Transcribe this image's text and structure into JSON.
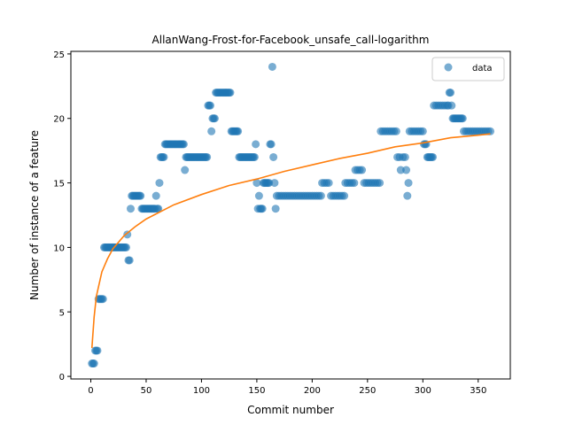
{
  "chart_data": {
    "type": "scatter",
    "title": "AllanWang-Frost-for-Facebook_unsafe_call-logarithm",
    "xlabel": "Commit number",
    "ylabel": "Number of instance of a feature",
    "xlim": [
      -18,
      379
    ],
    "ylim": [
      -0.2,
      25.2
    ],
    "xticks": [
      0,
      50,
      100,
      150,
      200,
      250,
      300,
      350
    ],
    "yticks": [
      0,
      5,
      10,
      15,
      20,
      25
    ],
    "grid": false,
    "legend": {
      "placement": "top-right",
      "entries": [
        "data"
      ]
    },
    "colors": {
      "data": "#1f77b4",
      "fit": "#ff7f0e"
    },
    "series": [
      {
        "name": "data",
        "kind": "scatter",
        "points": [
          [
            1,
            1
          ],
          [
            2,
            1
          ],
          [
            3,
            1
          ],
          [
            4,
            2
          ],
          [
            5,
            2
          ],
          [
            6,
            2
          ],
          [
            7,
            6
          ],
          [
            8,
            6
          ],
          [
            9,
            6
          ],
          [
            10,
            6
          ],
          [
            11,
            6
          ],
          [
            12,
            10
          ],
          [
            13,
            10
          ],
          [
            14,
            10
          ],
          [
            15,
            10
          ],
          [
            16,
            10
          ],
          [
            17,
            10
          ],
          [
            18,
            10
          ],
          [
            19,
            10
          ],
          [
            20,
            10
          ],
          [
            21,
            10
          ],
          [
            22,
            10
          ],
          [
            23,
            10
          ],
          [
            24,
            10
          ],
          [
            25,
            10
          ],
          [
            26,
            10
          ],
          [
            27,
            10
          ],
          [
            28,
            10
          ],
          [
            29,
            10
          ],
          [
            30,
            10
          ],
          [
            31,
            10
          ],
          [
            32,
            10
          ],
          [
            33,
            11
          ],
          [
            34,
            9
          ],
          [
            35,
            9
          ],
          [
            36,
            13
          ],
          [
            37,
            14
          ],
          [
            38,
            14
          ],
          [
            39,
            14
          ],
          [
            40,
            14
          ],
          [
            41,
            14
          ],
          [
            42,
            14
          ],
          [
            43,
            14
          ],
          [
            44,
            14
          ],
          [
            45,
            14
          ],
          [
            46,
            13
          ],
          [
            47,
            13
          ],
          [
            48,
            13
          ],
          [
            49,
            13
          ],
          [
            50,
            13
          ],
          [
            51,
            13
          ],
          [
            52,
            13
          ],
          [
            53,
            13
          ],
          [
            54,
            13
          ],
          [
            55,
            13
          ],
          [
            56,
            13
          ],
          [
            57,
            13
          ],
          [
            58,
            13
          ],
          [
            59,
            14
          ],
          [
            60,
            13
          ],
          [
            61,
            13
          ],
          [
            62,
            15
          ],
          [
            63,
            17
          ],
          [
            64,
            17
          ],
          [
            65,
            17
          ],
          [
            66,
            17
          ],
          [
            67,
            18
          ],
          [
            68,
            18
          ],
          [
            69,
            18
          ],
          [
            70,
            18
          ],
          [
            71,
            18
          ],
          [
            72,
            18
          ],
          [
            73,
            18
          ],
          [
            74,
            18
          ],
          [
            75,
            18
          ],
          [
            76,
            18
          ],
          [
            77,
            18
          ],
          [
            78,
            18
          ],
          [
            79,
            18
          ],
          [
            80,
            18
          ],
          [
            81,
            18
          ],
          [
            82,
            18
          ],
          [
            83,
            18
          ],
          [
            84,
            18
          ],
          [
            85,
            16
          ],
          [
            86,
            17
          ],
          [
            87,
            17
          ],
          [
            88,
            17
          ],
          [
            89,
            17
          ],
          [
            90,
            17
          ],
          [
            91,
            17
          ],
          [
            92,
            17
          ],
          [
            93,
            17
          ],
          [
            94,
            17
          ],
          [
            95,
            17
          ],
          [
            96,
            17
          ],
          [
            97,
            17
          ],
          [
            98,
            17
          ],
          [
            99,
            17
          ],
          [
            100,
            17
          ],
          [
            101,
            17
          ],
          [
            102,
            17
          ],
          [
            103,
            17
          ],
          [
            104,
            17
          ],
          [
            105,
            17
          ],
          [
            106,
            21
          ],
          [
            107,
            21
          ],
          [
            108,
            21
          ],
          [
            109,
            19
          ],
          [
            110,
            20
          ],
          [
            111,
            20
          ],
          [
            112,
            20
          ],
          [
            113,
            22
          ],
          [
            114,
            22
          ],
          [
            115,
            22
          ],
          [
            116,
            22
          ],
          [
            117,
            22
          ],
          [
            118,
            22
          ],
          [
            119,
            22
          ],
          [
            120,
            22
          ],
          [
            121,
            22
          ],
          [
            122,
            22
          ],
          [
            123,
            22
          ],
          [
            124,
            22
          ],
          [
            125,
            22
          ],
          [
            126,
            22
          ],
          [
            127,
            19
          ],
          [
            128,
            19
          ],
          [
            129,
            19
          ],
          [
            130,
            19
          ],
          [
            131,
            19
          ],
          [
            132,
            19
          ],
          [
            133,
            19
          ],
          [
            134,
            17
          ],
          [
            135,
            17
          ],
          [
            136,
            17
          ],
          [
            137,
            17
          ],
          [
            138,
            17
          ],
          [
            139,
            17
          ],
          [
            140,
            17
          ],
          [
            141,
            17
          ],
          [
            142,
            17
          ],
          [
            143,
            17
          ],
          [
            144,
            17
          ],
          [
            145,
            17
          ],
          [
            146,
            17
          ],
          [
            147,
            17
          ],
          [
            148,
            17
          ],
          [
            149,
            18
          ],
          [
            150,
            15
          ],
          [
            151,
            13
          ],
          [
            152,
            14
          ],
          [
            153,
            13
          ],
          [
            154,
            13
          ],
          [
            155,
            13
          ],
          [
            156,
            15
          ],
          [
            157,
            15
          ],
          [
            158,
            15
          ],
          [
            159,
            15
          ],
          [
            160,
            15
          ],
          [
            161,
            15
          ],
          [
            162,
            18
          ],
          [
            163,
            18
          ],
          [
            164,
            24
          ],
          [
            165,
            17
          ],
          [
            166,
            15
          ],
          [
            167,
            13
          ],
          [
            168,
            14
          ],
          [
            170,
            14
          ],
          [
            172,
            14
          ],
          [
            174,
            14
          ],
          [
            176,
            14
          ],
          [
            178,
            14
          ],
          [
            180,
            14
          ],
          [
            182,
            14
          ],
          [
            184,
            14
          ],
          [
            186,
            14
          ],
          [
            188,
            14
          ],
          [
            190,
            14
          ],
          [
            192,
            14
          ],
          [
            194,
            14
          ],
          [
            196,
            14
          ],
          [
            198,
            14
          ],
          [
            200,
            14
          ],
          [
            202,
            14
          ],
          [
            204,
            14
          ],
          [
            206,
            14
          ],
          [
            208,
            14
          ],
          [
            209,
            15
          ],
          [
            211,
            15
          ],
          [
            213,
            15
          ],
          [
            215,
            15
          ],
          [
            217,
            14
          ],
          [
            219,
            14
          ],
          [
            221,
            14
          ],
          [
            223,
            14
          ],
          [
            225,
            14
          ],
          [
            227,
            14
          ],
          [
            229,
            14
          ],
          [
            230,
            15
          ],
          [
            232,
            15
          ],
          [
            234,
            15
          ],
          [
            236,
            15
          ],
          [
            238,
            15
          ],
          [
            239,
            16
          ],
          [
            241,
            16
          ],
          [
            243,
            16
          ],
          [
            245,
            16
          ],
          [
            247,
            15
          ],
          [
            249,
            15
          ],
          [
            251,
            15
          ],
          [
            253,
            15
          ],
          [
            255,
            15
          ],
          [
            257,
            15
          ],
          [
            259,
            15
          ],
          [
            261,
            15
          ],
          [
            262,
            19
          ],
          [
            264,
            19
          ],
          [
            266,
            19
          ],
          [
            268,
            19
          ],
          [
            270,
            19
          ],
          [
            272,
            19
          ],
          [
            274,
            19
          ],
          [
            276,
            19
          ],
          [
            277,
            17
          ],
          [
            279,
            17
          ],
          [
            280,
            16
          ],
          [
            282,
            17
          ],
          [
            284,
            17
          ],
          [
            285,
            16
          ],
          [
            286,
            14
          ],
          [
            287,
            15
          ],
          [
            288,
            19
          ],
          [
            290,
            19
          ],
          [
            292,
            19
          ],
          [
            294,
            19
          ],
          [
            296,
            19
          ],
          [
            298,
            19
          ],
          [
            300,
            19
          ],
          [
            301,
            18
          ],
          [
            302,
            18
          ],
          [
            303,
            18
          ],
          [
            304,
            17
          ],
          [
            305,
            17
          ],
          [
            306,
            17
          ],
          [
            307,
            17
          ],
          [
            308,
            17
          ],
          [
            309,
            17
          ],
          [
            310,
            21
          ],
          [
            312,
            21
          ],
          [
            314,
            21
          ],
          [
            316,
            21
          ],
          [
            318,
            21
          ],
          [
            320,
            21
          ],
          [
            322,
            21
          ],
          [
            323,
            21
          ],
          [
            324,
            22
          ],
          [
            325,
            22
          ],
          [
            326,
            21
          ],
          [
            327,
            20
          ],
          [
            328,
            20
          ],
          [
            329,
            20
          ],
          [
            330,
            20
          ],
          [
            331,
            20
          ],
          [
            332,
            20
          ],
          [
            333,
            20
          ],
          [
            334,
            20
          ],
          [
            335,
            20
          ],
          [
            336,
            20
          ],
          [
            337,
            19
          ],
          [
            339,
            19
          ],
          [
            341,
            19
          ],
          [
            343,
            19
          ],
          [
            345,
            19
          ],
          [
            347,
            19
          ],
          [
            349,
            19
          ],
          [
            351,
            19
          ],
          [
            353,
            19
          ],
          [
            355,
            19
          ],
          [
            357,
            19
          ],
          [
            359,
            19
          ],
          [
            361,
            19
          ]
        ]
      },
      {
        "kind": "line",
        "model": "logarithmic",
        "points": [
          [
            1,
            2.2
          ],
          [
            2,
            3.4
          ],
          [
            3,
            4.6
          ],
          [
            5,
            6.2
          ],
          [
            10,
            8.1
          ],
          [
            15,
            9.1
          ],
          [
            20,
            9.9
          ],
          [
            30,
            10.9
          ],
          [
            40,
            11.6
          ],
          [
            50,
            12.2
          ],
          [
            75,
            13.3
          ],
          [
            100,
            14.1
          ],
          [
            125,
            14.8
          ],
          [
            150,
            15.3
          ],
          [
            175,
            15.9
          ],
          [
            200,
            16.4
          ],
          [
            225,
            16.9
          ],
          [
            250,
            17.3
          ],
          [
            275,
            17.8
          ],
          [
            300,
            18.1
          ],
          [
            325,
            18.5
          ],
          [
            350,
            18.7
          ],
          [
            361,
            18.8
          ]
        ]
      }
    ]
  }
}
